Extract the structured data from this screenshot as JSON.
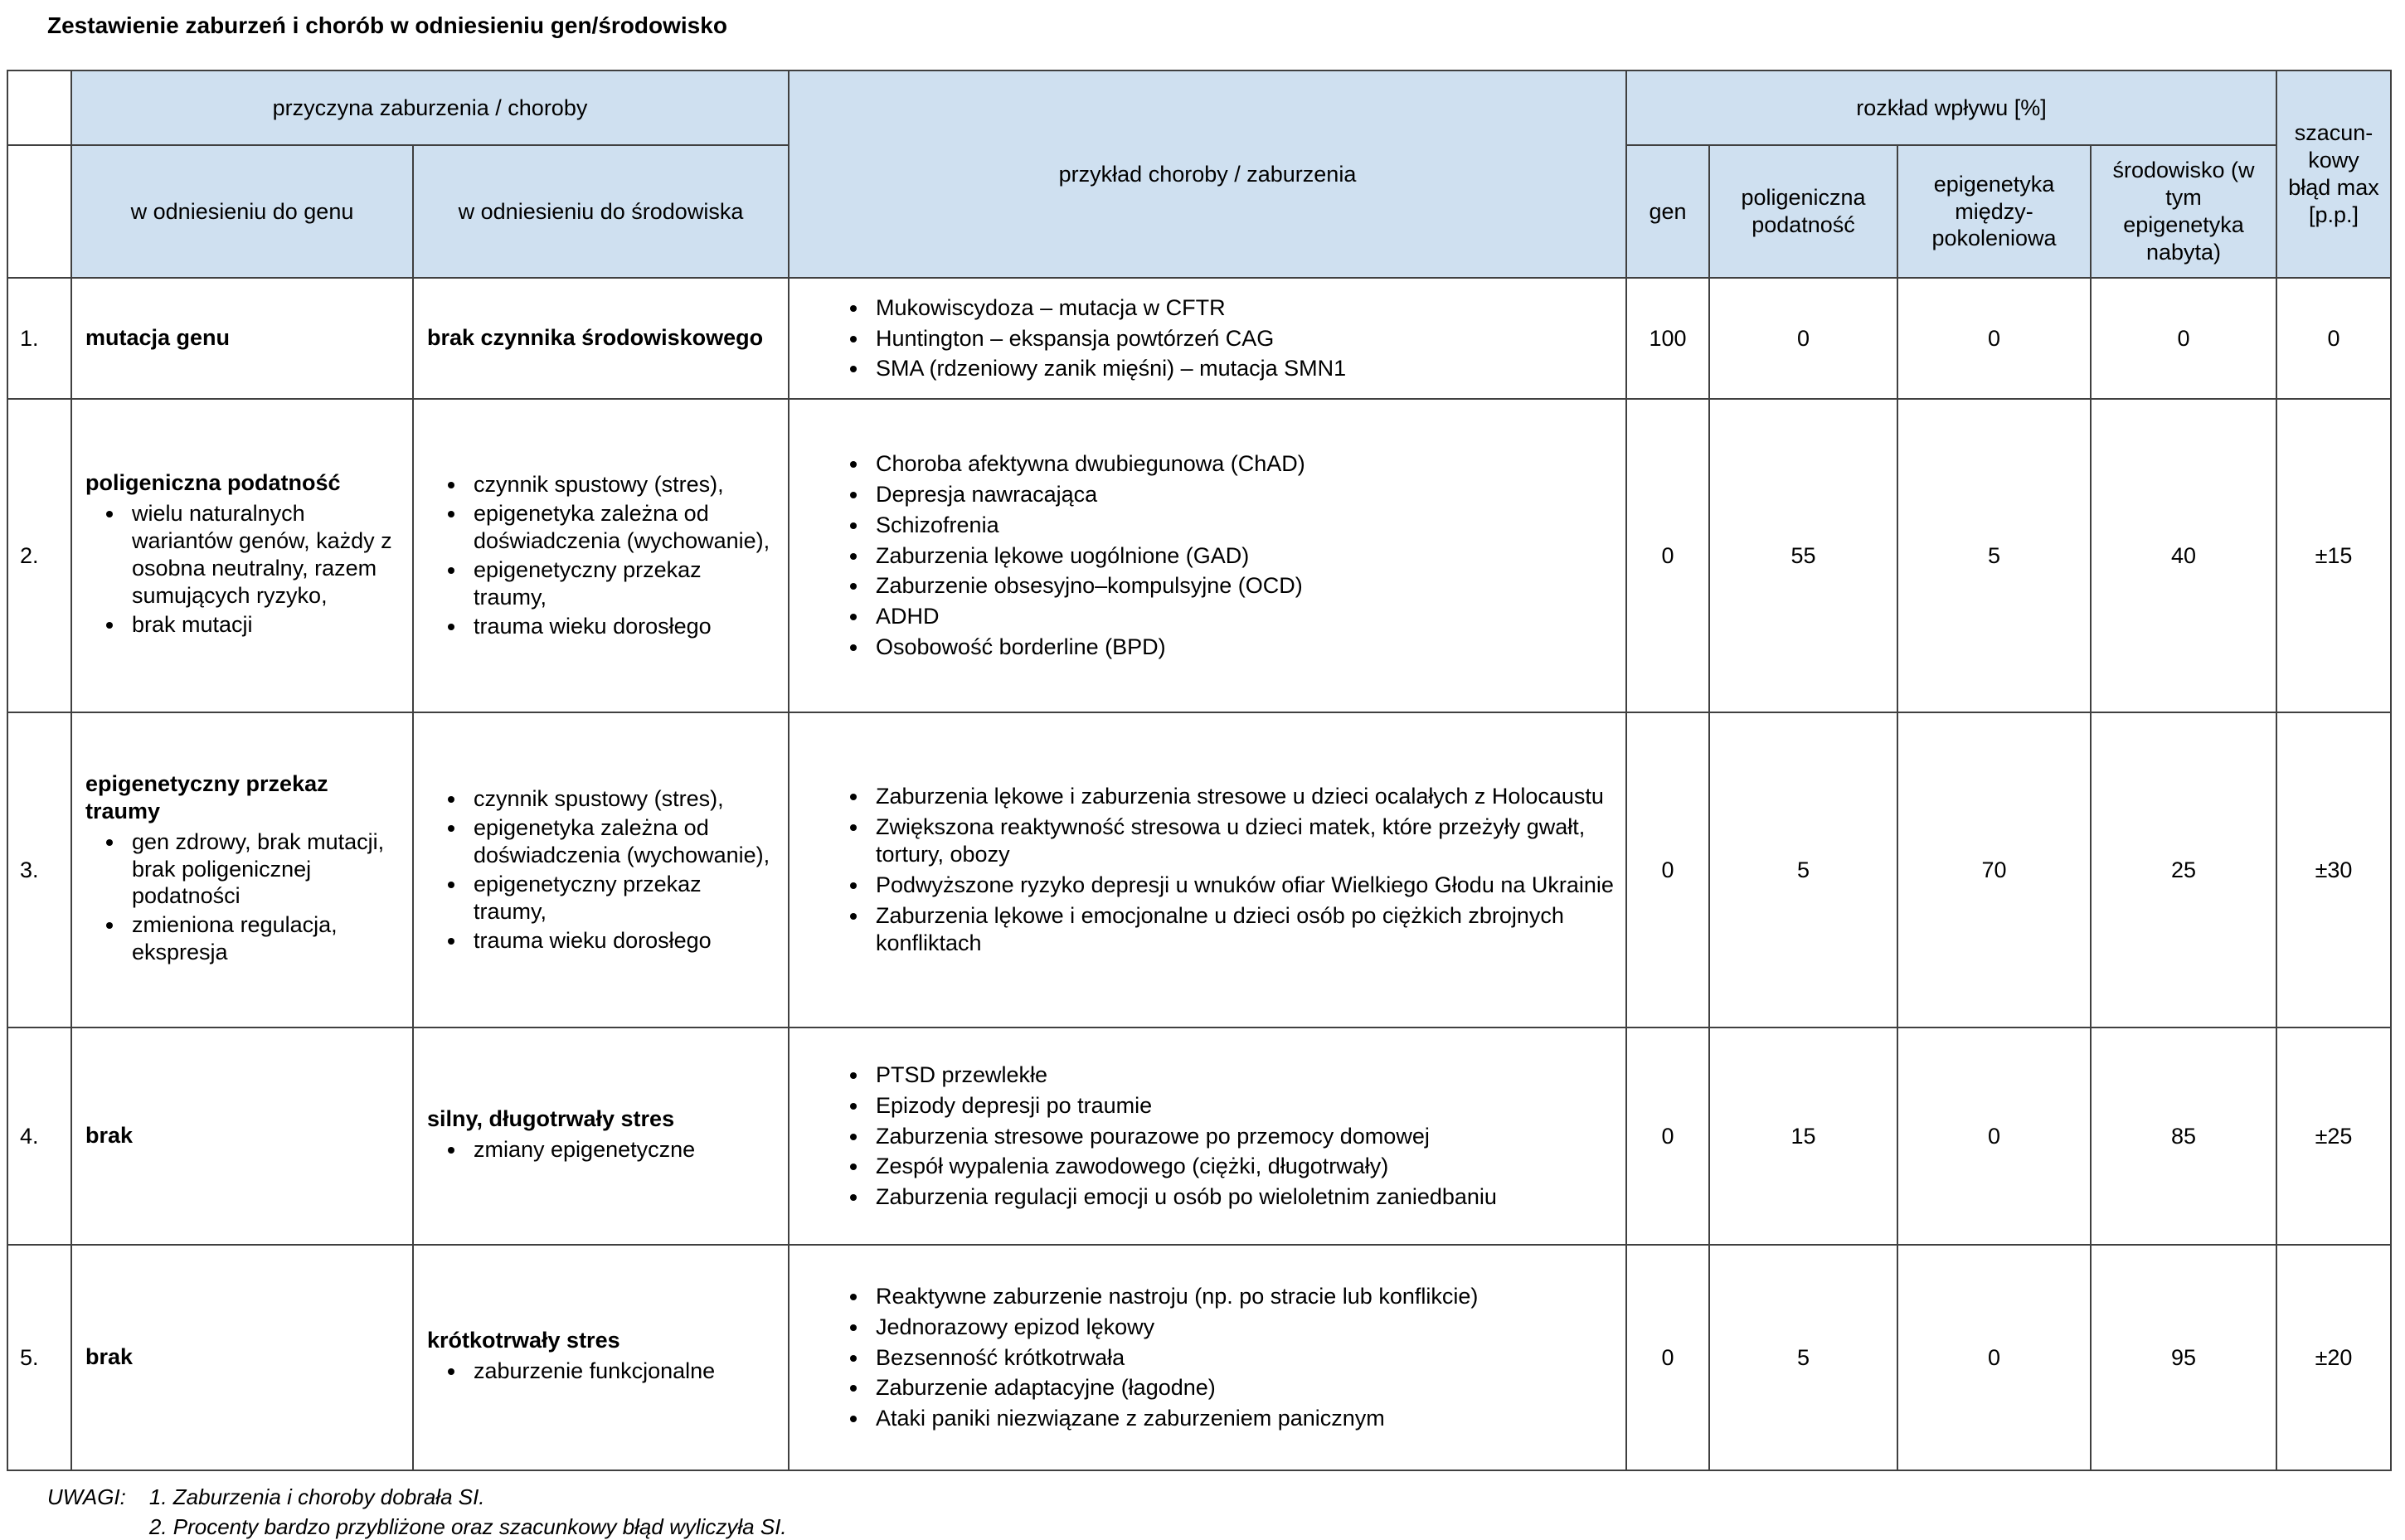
{
  "colors": {
    "header_bg": "#cfe0f0",
    "border": "#404040"
  },
  "page": {
    "title": "Zestawienie zaburzeń i chorób w odniesieniu gen/środowisko"
  },
  "table": {
    "header": {
      "cause_group": "przyczyna zaburzenia / choroby",
      "gene_col": "w odniesieniu do genu",
      "env_col": "w odniesieniu do środowiska",
      "examples_col": "przykład choroby / zaburzenia",
      "influence_group": "rozkład wpływu [%]",
      "influence_cols": [
        "gen",
        "poligeniczna podatność",
        "epigenetyka między-pokoleniowa",
        "środowisko (w tym epigenetyka nabyta)"
      ],
      "error_col": "szacun-kowy błąd max [p.p.]"
    },
    "rows": [
      {
        "num": "1.",
        "gene_title": "mutacja genu",
        "env_title": "brak czynnika środowiskowego",
        "examples": [
          "Mukowiscydoza – mutacja w CFTR",
          "Huntington – ekspansja powtórzeń CAG",
          "SMA (rdzeniowy zanik mięśni) – mutacja SMN1"
        ],
        "values": [
          "100",
          "0",
          "0",
          "0",
          "0"
        ]
      },
      {
        "num": "2.",
        "gene_title": "poligeniczna podatność",
        "gene_bullets": [
          "wielu naturalnych wariantów genów, każdy z osobna neutralny, razem sumujących ryzyko,",
          "brak mutacji"
        ],
        "env_bullets": [
          "czynnik spustowy (stres),",
          "epigenetyka zależna od doświadczenia (wychowanie),",
          "epigenetyczny przekaz traumy,",
          "trauma wieku dorosłego"
        ],
        "examples": [
          "Choroba afektywna dwubiegunowa (ChAD)",
          "Depresja nawracająca",
          "Schizofrenia",
          "Zaburzenia lękowe uogólnione (GAD)",
          "Zaburzenie obsesyjno–kompulsyjne (OCD)",
          "ADHD",
          "Osobowość borderline (BPD)"
        ],
        "values": [
          "0",
          "55",
          "5",
          "40",
          "±15"
        ]
      },
      {
        "num": "3.",
        "gene_title": "epigenetyczny przekaz traumy",
        "gene_bullets": [
          "gen zdrowy, brak mutacji, brak poligenicznej podatności",
          "zmieniona regulacja, ekspresja"
        ],
        "env_bullets": [
          "czynnik spustowy (stres),",
          "epigenetyka zależna od doświadczenia (wychowanie),",
          "epigenetyczny przekaz traumy,",
          "trauma wieku dorosłego"
        ],
        "examples": [
          "Zaburzenia lękowe i zaburzenia stresowe u dzieci ocalałych z Holocaustu",
          "Zwiększona reaktywność stresowa u dzieci matek, które przeżyły gwałt, tortury, obozy",
          "Podwyższone ryzyko depresji u wnuków ofiar Wielkiego Głodu na Ukrainie",
          "Zaburzenia lękowe i emocjonalne u dzieci osób po ciężkich zbrojnych konfliktach"
        ],
        "values": [
          "0",
          "5",
          "70",
          "25",
          "±30"
        ]
      },
      {
        "num": "4.",
        "gene_title": "brak",
        "env_title": "silny, długotrwały stres",
        "env_bullets": [
          "zmiany epigenetyczne"
        ],
        "examples": [
          "PTSD przewlekłe",
          "Epizody depresji po traumie",
          "Zaburzenia stresowe pourazowe po przemocy domowej",
          "Zespół wypalenia zawodowego (ciężki, długotrwały)",
          "Zaburzenia regulacji emocji u osób po wieloletnim zaniedbaniu"
        ],
        "values": [
          "0",
          "15",
          "0",
          "85",
          "±25"
        ]
      },
      {
        "num": "5.",
        "gene_title": "brak",
        "env_title": "krótkotrwały stres",
        "env_bullets": [
          "zaburzenie funkcjonalne"
        ],
        "examples": [
          "Reaktywne zaburzenie nastroju (np. po stracie lub konflikcie)",
          "Jednorazowy epizod lękowy",
          "Bezsenność krótkotrwała",
          "Zaburzenie adaptacyjne (łagodne)",
          "Ataki paniki niezwiązane z zaburzeniem panicznym"
        ],
        "values": [
          "0",
          "5",
          "0",
          "95",
          "±20"
        ]
      }
    ]
  },
  "notes": {
    "label": "UWAGI:",
    "items": [
      "1. Zaburzenia i choroby dobrała SI.",
      "2. Procenty bardzo przybliżone oraz szacunkowy błąd wyliczyła SI."
    ]
  }
}
